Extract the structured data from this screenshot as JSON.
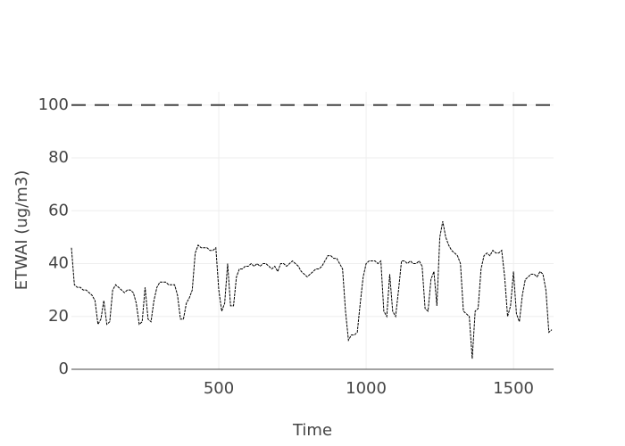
{
  "chart_data": {
    "type": "line",
    "x_label": "Time",
    "y_label": "ETWAI (ug/m3)",
    "x": [
      0,
      10,
      20,
      30,
      40,
      50,
      60,
      70,
      80,
      90,
      100,
      110,
      120,
      130,
      140,
      150,
      160,
      170,
      180,
      190,
      200,
      210,
      220,
      230,
      240,
      250,
      260,
      270,
      280,
      290,
      300,
      310,
      320,
      330,
      340,
      350,
      360,
      370,
      380,
      390,
      400,
      410,
      420,
      430,
      440,
      450,
      460,
      470,
      480,
      490,
      500,
      510,
      520,
      530,
      540,
      550,
      560,
      570,
      580,
      590,
      600,
      610,
      620,
      630,
      640,
      650,
      660,
      670,
      680,
      690,
      700,
      710,
      720,
      730,
      740,
      750,
      760,
      770,
      780,
      790,
      800,
      810,
      820,
      830,
      840,
      850,
      860,
      870,
      880,
      890,
      900,
      910,
      920,
      930,
      940,
      950,
      960,
      970,
      980,
      990,
      1000,
      1010,
      1020,
      1030,
      1040,
      1050,
      1060,
      1070,
      1080,
      1090,
      1100,
      1110,
      1120,
      1130,
      1140,
      1150,
      1160,
      1170,
      1180,
      1190,
      1200,
      1210,
      1220,
      1230,
      1240,
      1250,
      1260,
      1270,
      1280,
      1290,
      1300,
      1310,
      1320,
      1330,
      1340,
      1350,
      1360,
      1370,
      1380,
      1390,
      1400,
      1410,
      1420,
      1430,
      1440,
      1450,
      1460,
      1470,
      1480,
      1490,
      1500,
      1510,
      1520,
      1530,
      1540,
      1550,
      1560,
      1570,
      1580,
      1590,
      1600,
      1610,
      1620,
      1630
    ],
    "values": [
      46,
      32,
      31,
      31,
      30,
      30,
      29,
      28,
      26,
      17,
      19,
      26,
      17,
      18,
      30,
      32,
      31,
      30,
      29,
      30,
      30,
      29,
      25,
      17,
      18,
      31,
      19,
      18,
      26,
      31,
      33,
      33,
      33,
      32,
      32,
      32,
      28,
      19,
      19,
      25,
      27,
      30,
      44,
      47,
      46,
      46,
      46,
      45,
      45,
      46,
      30,
      22,
      25,
      40,
      24,
      24,
      35,
      38,
      38,
      39,
      39,
      40,
      39,
      40,
      39,
      40,
      40,
      39,
      38,
      39,
      37,
      40,
      40,
      39,
      40,
      41,
      40,
      39,
      37,
      36,
      35,
      36,
      37,
      38,
      38,
      39,
      41,
      43,
      43,
      42,
      42,
      40,
      38,
      22,
      11,
      13,
      13,
      14,
      25,
      35,
      40,
      41,
      41,
      41,
      40,
      41,
      22,
      20,
      36,
      22,
      20,
      30,
      41,
      41,
      40,
      41,
      40,
      40,
      41,
      39,
      23,
      22,
      34,
      37,
      24,
      50,
      56,
      50,
      47,
      45,
      44,
      43,
      40,
      22,
      21,
      20,
      4,
      22,
      23,
      38,
      43,
      44,
      43,
      45,
      44,
      44,
      45,
      35,
      20,
      24,
      37,
      21,
      18,
      28,
      34,
      35,
      36,
      36,
      35,
      37,
      36,
      30,
      14,
      15
    ],
    "color": "#000000",
    "hline": 100,
    "hline_color": "#444444",
    "xlim": [
      0,
      1636
    ],
    "ylim": [
      0,
      105
    ],
    "xticks": [
      500,
      1000,
      1500
    ],
    "yticks": [
      0,
      20,
      40,
      60,
      80,
      100
    ],
    "grid": true
  }
}
